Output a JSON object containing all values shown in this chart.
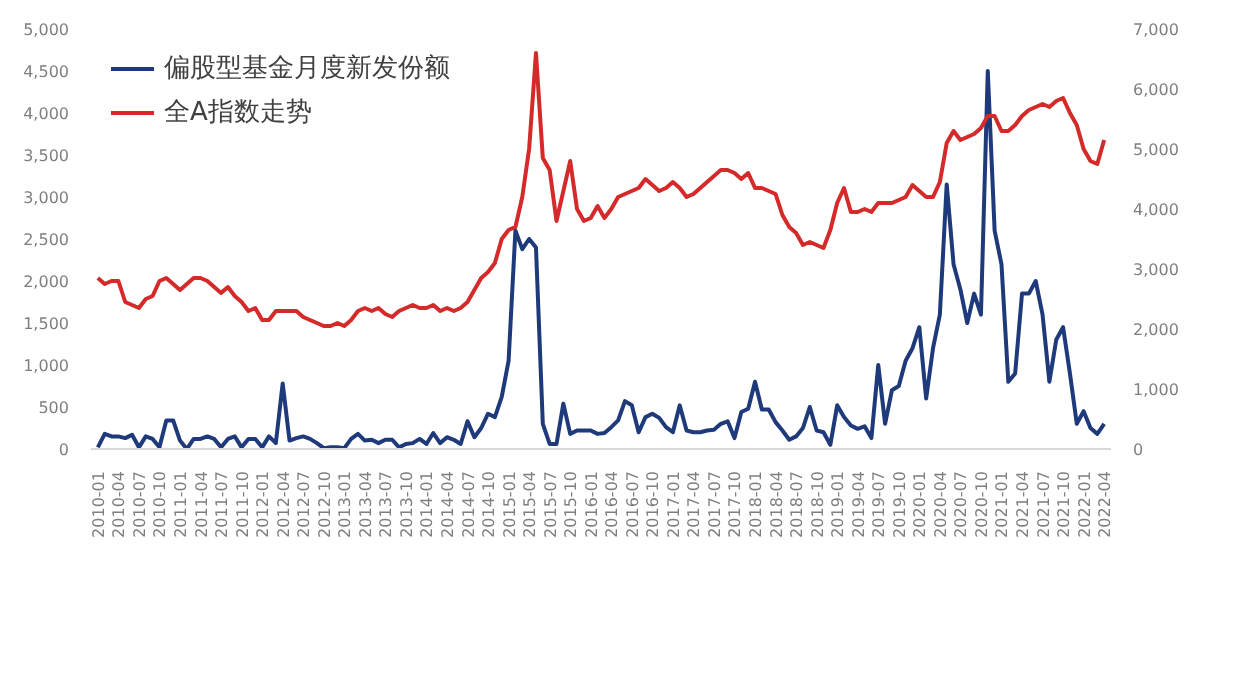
{
  "chart_data": {
    "type": "line",
    "x": [
      "2010-01",
      "2010-02",
      "2010-03",
      "2010-04",
      "2010-05",
      "2010-06",
      "2010-07",
      "2010-08",
      "2010-09",
      "2010-10",
      "2010-11",
      "2010-12",
      "2011-01",
      "2011-02",
      "2011-03",
      "2011-04",
      "2011-05",
      "2011-06",
      "2011-07",
      "2011-08",
      "2011-09",
      "2011-10",
      "2011-11",
      "2011-12",
      "2012-01",
      "2012-02",
      "2012-03",
      "2012-04",
      "2012-05",
      "2012-06",
      "2012-07",
      "2012-08",
      "2012-09",
      "2012-10",
      "2012-11",
      "2012-12",
      "2013-01",
      "2013-02",
      "2013-03",
      "2013-04",
      "2013-05",
      "2013-06",
      "2013-07",
      "2013-08",
      "2013-09",
      "2013-10",
      "2013-11",
      "2013-12",
      "2014-01",
      "2014-02",
      "2014-03",
      "2014-04",
      "2014-05",
      "2014-06",
      "2014-07",
      "2014-08",
      "2014-09",
      "2014-10",
      "2014-11",
      "2014-12",
      "2015-01",
      "2015-02",
      "2015-03",
      "2015-04",
      "2015-05",
      "2015-06",
      "2015-07",
      "2015-08",
      "2015-09",
      "2015-10",
      "2015-11",
      "2015-12",
      "2016-01",
      "2016-02",
      "2016-03",
      "2016-04",
      "2016-05",
      "2016-06",
      "2016-07",
      "2016-08",
      "2016-09",
      "2016-10",
      "2016-11",
      "2016-12",
      "2017-01",
      "2017-02",
      "2017-03",
      "2017-04",
      "2017-05",
      "2017-06",
      "2017-07",
      "2017-08",
      "2017-09",
      "2017-10",
      "2017-11",
      "2017-12",
      "2018-01",
      "2018-02",
      "2018-03",
      "2018-04",
      "2018-05",
      "2018-06",
      "2018-07",
      "2018-08",
      "2018-09",
      "2018-10",
      "2018-11",
      "2018-12",
      "2019-01",
      "2019-02",
      "2019-03",
      "2019-04",
      "2019-05",
      "2019-06",
      "2019-07",
      "2019-08",
      "2019-09",
      "2019-10",
      "2019-11",
      "2019-12",
      "2020-01",
      "2020-02",
      "2020-03",
      "2020-04",
      "2020-05",
      "2020-06",
      "2020-07",
      "2020-08",
      "2020-09",
      "2020-10",
      "2020-11",
      "2020-12",
      "2021-01",
      "2021-02",
      "2021-03",
      "2021-04",
      "2021-05",
      "2021-06",
      "2021-07",
      "2021-08",
      "2021-09",
      "2021-10",
      "2021-11",
      "2021-12",
      "2022-01",
      "2022-02",
      "2022-03",
      "2022-04"
    ],
    "series": [
      {
        "name": "偏股型基金月度新发份额",
        "color": "#1f3a7a",
        "values": [
          20,
          180,
          150,
          150,
          130,
          170,
          20,
          150,
          120,
          20,
          340,
          340,
          100,
          0,
          120,
          120,
          150,
          120,
          20,
          120,
          150,
          20,
          120,
          120,
          20,
          150,
          70,
          780,
          100,
          130,
          150,
          120,
          70,
          10,
          20,
          20,
          10,
          120,
          180,
          100,
          110,
          70,
          110,
          110,
          20,
          60,
          70,
          120,
          60,
          190,
          70,
          140,
          110,
          60,
          330,
          140,
          250,
          420,
          380,
          620,
          1050,
          2600,
          2380,
          2500,
          2400,
          300,
          60,
          60,
          540,
          180,
          220,
          220,
          220,
          180,
          190,
          260,
          340,
          570,
          520,
          200,
          380,
          420,
          370,
          260,
          200,
          520,
          220,
          200,
          200,
          220,
          230,
          300,
          330,
          130,
          440,
          480,
          800,
          470,
          470,
          320,
          220,
          110,
          150,
          250,
          500,
          220,
          200,
          50,
          520,
          380,
          280,
          240,
          270,
          130,
          1000,
          300,
          700,
          750,
          1050,
          1200,
          1450,
          600,
          1200,
          1600,
          3150,
          2200,
          1900,
          1500,
          1850,
          1600,
          4500,
          2600,
          2200,
          800,
          900,
          1850,
          1850,
          2000,
          1600,
          800,
          1300,
          1450,
          900,
          300,
          450,
          250,
          180,
          300
        ]
      },
      {
        "name": "全A指数走势",
        "color": "#d42a2a",
        "axis": "y2",
        "values": [
          2850,
          2750,
          2800,
          2800,
          2450,
          2400,
          2350,
          2500,
          2550,
          2800,
          2850,
          2750,
          2650,
          2750,
          2850,
          2850,
          2800,
          2700,
          2600,
          2700,
          2550,
          2450,
          2300,
          2350,
          2150,
          2150,
          2300,
          2300,
          2300,
          2300,
          2200,
          2150,
          2100,
          2050,
          2050,
          2100,
          2050,
          2150,
          2300,
          2350,
          2300,
          2350,
          2250,
          2200,
          2300,
          2350,
          2400,
          2350,
          2350,
          2400,
          2300,
          2350,
          2300,
          2350,
          2450,
          2650,
          2850,
          2950,
          3100,
          3500,
          3650,
          3700,
          4200,
          5000,
          6600,
          4850,
          4650,
          3800,
          4300,
          4800,
          4000,
          3800,
          3850,
          4050,
          3850,
          4000,
          4200,
          4250,
          4300,
          4350,
          4500,
          4400,
          4300,
          4350,
          4450,
          4350,
          4200,
          4250,
          4350,
          4450,
          4550,
          4650,
          4650,
          4600,
          4500,
          4600,
          4350,
          4350,
          4300,
          4250,
          3900,
          3700,
          3600,
          3400,
          3450,
          3400,
          3350,
          3650,
          4100,
          4350,
          3950,
          3950,
          4000,
          3950,
          4100,
          4100,
          4100,
          4150,
          4200,
          4400,
          4300,
          4200,
          4200,
          4450,
          5100,
          5300,
          5150,
          5200,
          5250,
          5350,
          5550,
          5550,
          5300,
          5300,
          5400,
          5550,
          5650,
          5700,
          5750,
          5700,
          5800,
          5850,
          5600,
          5400,
          5000,
          4800,
          4750,
          5150
        ]
      }
    ],
    "xlim": [
      "2009-12",
      "2022-05"
    ],
    "xticks": [
      "2010-01",
      "2010-04",
      "2010-07",
      "2010-10",
      "2011-01",
      "2011-04",
      "2011-07",
      "2011-10",
      "2012-01",
      "2012-04",
      "2012-07",
      "2012-10",
      "2013-01",
      "2013-04",
      "2013-07",
      "2013-10",
      "2014-01",
      "2014-04",
      "2014-07",
      "2014-10",
      "2015-01",
      "2015-04",
      "2015-07",
      "2015-10",
      "2016-01",
      "2016-04",
      "2016-07",
      "2016-10",
      "2017-01",
      "2017-04",
      "2017-07",
      "2017-10",
      "2018-01",
      "2018-04",
      "2018-07",
      "2018-10",
      "2019-01",
      "2019-04",
      "2019-07",
      "2019-10",
      "2020-01",
      "2020-04",
      "2020-07",
      "2020-10",
      "2021-01",
      "2021-04",
      "2021-07",
      "2021-10",
      "2022-01",
      "2022-04"
    ],
    "ylim": [
      0,
      5000
    ],
    "yticks": [
      {
        "value": 0,
        "label": "0"
      },
      {
        "value": 500,
        "label": "500"
      },
      {
        "value": 1000,
        "label": "1,000"
      },
      {
        "value": 1500,
        "label": "1,500"
      },
      {
        "value": 2000,
        "label": "2,000"
      },
      {
        "value": 2500,
        "label": "2,500"
      },
      {
        "value": 3000,
        "label": "3,000"
      },
      {
        "value": 3500,
        "label": "3,500"
      },
      {
        "value": 4000,
        "label": "4,000"
      },
      {
        "value": 4500,
        "label": "4,500"
      },
      {
        "value": 5000,
        "label": "5,000"
      }
    ],
    "y2lim": [
      0,
      7000
    ],
    "y2ticks": [
      {
        "value": 0,
        "label": "0"
      },
      {
        "value": 1000,
        "label": "1,000"
      },
      {
        "value": 2000,
        "label": "2,000"
      },
      {
        "value": 3000,
        "label": "3,000"
      },
      {
        "value": 4000,
        "label": "4,000"
      },
      {
        "value": 5000,
        "label": "5,000"
      },
      {
        "value": 6000,
        "label": "6,000"
      },
      {
        "value": 7000,
        "label": "7,000"
      }
    ],
    "grid": false,
    "legend": "top left",
    "marker": "none",
    "line_style": "solid"
  }
}
